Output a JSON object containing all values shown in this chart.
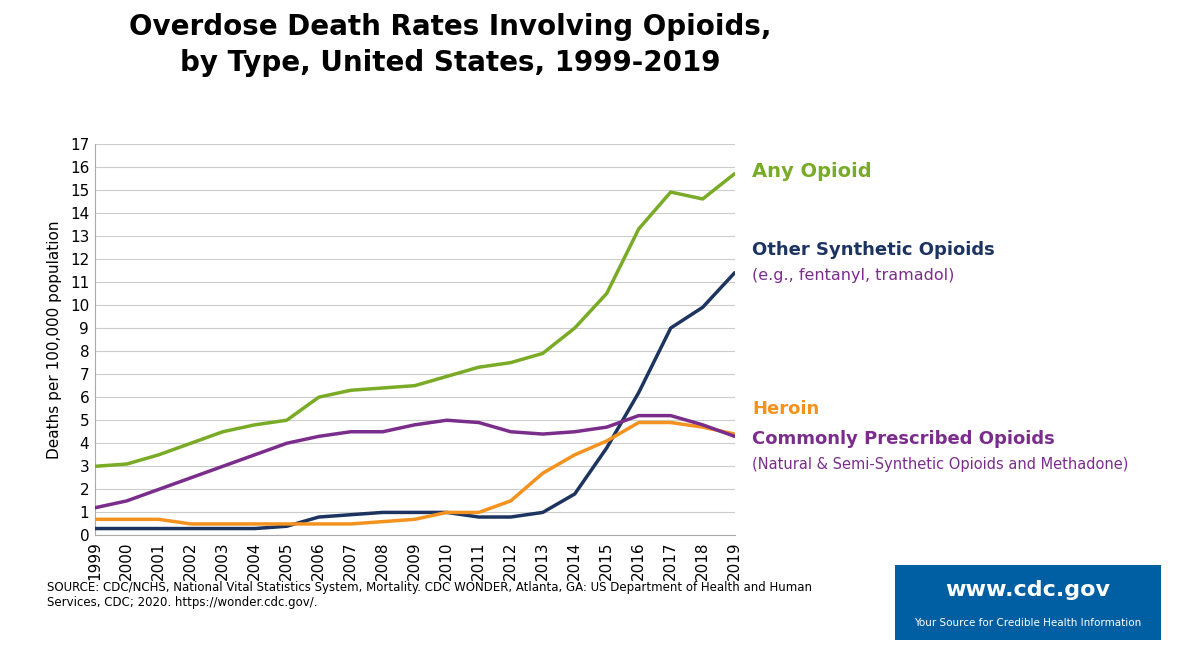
{
  "title_line1": "Overdose Death Rates Involving Opioids,",
  "title_line2": "by Type, United States, 1999-2019",
  "ylabel": "Deaths per 100,000 population",
  "years": [
    1999,
    2000,
    2001,
    2002,
    2003,
    2004,
    2005,
    2006,
    2007,
    2008,
    2009,
    2010,
    2011,
    2012,
    2013,
    2014,
    2015,
    2016,
    2017,
    2018,
    2019
  ],
  "any_opioid": [
    3.0,
    3.1,
    3.5,
    4.0,
    4.5,
    4.8,
    5.0,
    6.0,
    6.3,
    6.4,
    6.5,
    6.9,
    7.3,
    7.5,
    7.9,
    9.0,
    10.5,
    13.3,
    14.9,
    14.6,
    15.7
  ],
  "other_synthetic": [
    0.3,
    0.3,
    0.3,
    0.3,
    0.3,
    0.3,
    0.4,
    0.8,
    0.9,
    1.0,
    1.0,
    1.0,
    0.8,
    0.8,
    1.0,
    1.8,
    3.8,
    6.2,
    9.0,
    9.9,
    11.4
  ],
  "heroin": [
    0.7,
    0.7,
    0.7,
    0.5,
    0.5,
    0.5,
    0.5,
    0.5,
    0.5,
    0.6,
    0.7,
    1.0,
    1.0,
    1.5,
    2.7,
    3.5,
    4.1,
    4.9,
    4.9,
    4.7,
    4.4
  ],
  "prescribed": [
    1.2,
    1.5,
    2.0,
    2.5,
    3.0,
    3.5,
    4.0,
    4.3,
    4.5,
    4.5,
    4.8,
    5.0,
    4.9,
    4.5,
    4.4,
    4.5,
    4.7,
    5.2,
    5.2,
    4.8,
    4.3
  ],
  "any_opioid_color": "#7aab27",
  "other_synthetic_color": "#1d3461",
  "heroin_color": "#f4921f",
  "prescribed_color": "#7b2d8b",
  "background_color": "#ffffff",
  "grid_color": "#cccccc",
  "spine_color": "#aaaaaa",
  "ylim": [
    0,
    17
  ],
  "yticks": [
    0,
    1,
    2,
    3,
    4,
    5,
    6,
    7,
    8,
    9,
    10,
    11,
    12,
    13,
    14,
    15,
    16,
    17
  ],
  "source_text": "SOURCE: CDC/NCHS, National Vital Statistics System, Mortality. CDC WONDER, Atlanta, GA: US Department of Health and Human\nServices, CDC; 2020. https://wonder.cdc.gov/.",
  "label_any_opioid": "Any Opioid",
  "label_other_syn1": "Other Synthetic Opioids",
  "label_other_syn2": "(e.g., fentanyl, tramadol)",
  "label_heroin": "Heroin",
  "label_prescribed1": "Commonly Prescribed Opioids",
  "label_prescribed2": "(Natural & Semi-Synthetic Opioids and Methadone)",
  "cdc_url": "www.cdc.gov",
  "cdc_tagline": "Your Source for Credible Health Information",
  "cdc_box_color": "#005ea2",
  "line_width": 2.5,
  "title_fontsize": 20,
  "tick_fontsize": 11,
  "ylabel_fontsize": 11
}
